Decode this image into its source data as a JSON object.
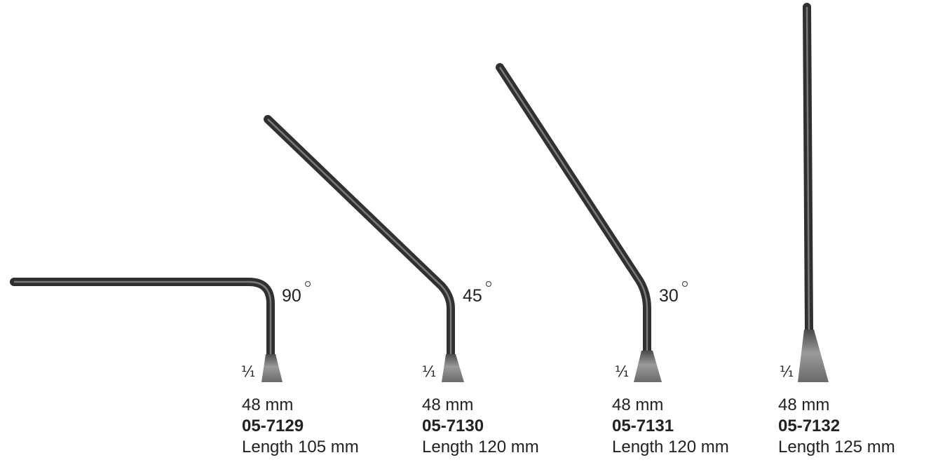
{
  "instruments": [
    {
      "angle": "90",
      "scale": "⅟₁",
      "size": "48 mm",
      "code": "05-7129",
      "length": "Length 105 mm"
    },
    {
      "angle": "45",
      "scale": "⅟₁",
      "size": "48 mm",
      "code": "05-7130",
      "length": "Length 120 mm"
    },
    {
      "angle": "30",
      "scale": "⅟₁",
      "size": "48 mm",
      "code": "05-7131",
      "length": "Length 120 mm"
    },
    {
      "angle": "",
      "scale": "⅟₁",
      "size": "48 mm",
      "code": "05-7132",
      "length": "Length 125 mm"
    }
  ],
  "colors": {
    "shaft": "#3a3a3a",
    "blade": "#8a8a8a",
    "text": "#222222"
  }
}
